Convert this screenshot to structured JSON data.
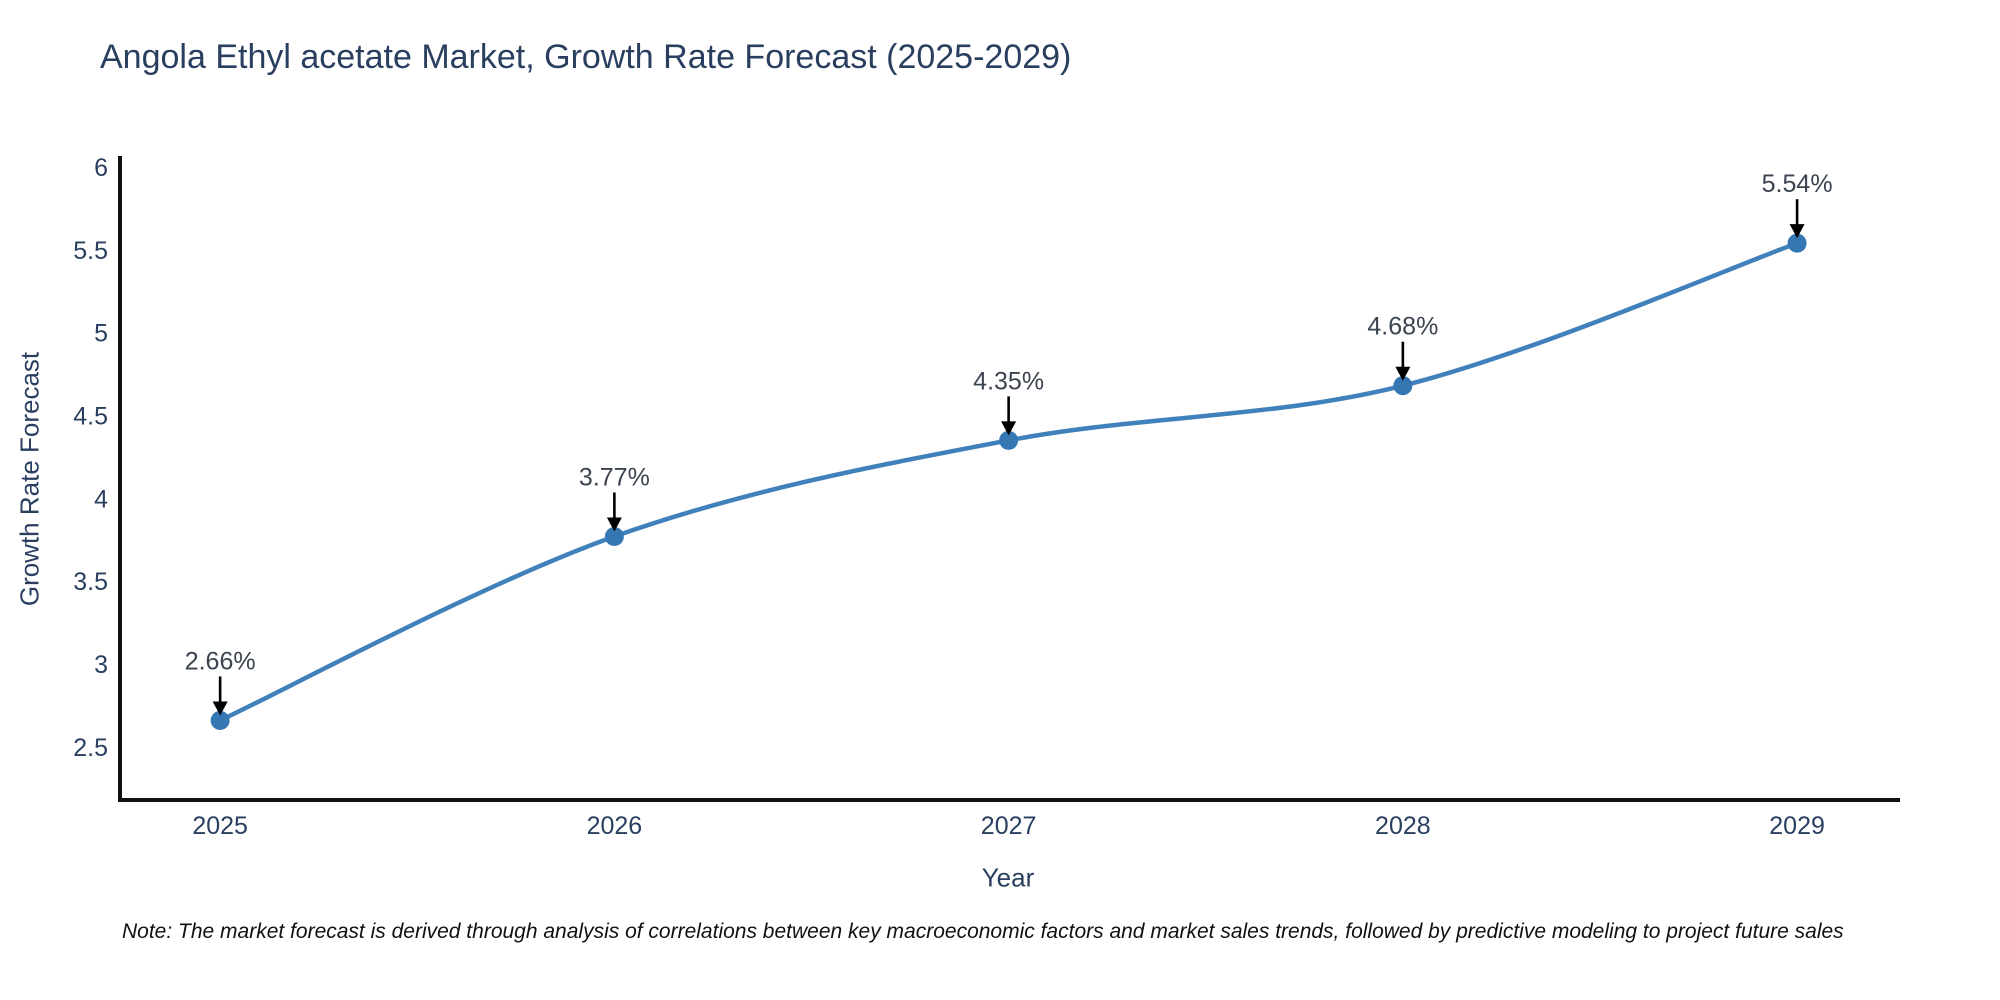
{
  "header": {
    "title": "Angola Ethyl acetate Market, Growth Rate Forecast (2025-2029)"
  },
  "note": {
    "text": "Note: The market forecast is derived through analysis of correlations between key macroeconomic factors and market sales trends, followed by predictive modeling to project future sales"
  },
  "chart_data": {
    "type": "line",
    "title": "Angola Ethyl acetate Market, Growth Rate Forecast (2025-2029)",
    "xlabel": "Year",
    "ylabel": "Growth Rate Forecast",
    "x": [
      2025,
      2026,
      2027,
      2028,
      2029
    ],
    "y": [
      2.66,
      3.77,
      4.35,
      4.68,
      5.54
    ],
    "point_labels": [
      "2.66%",
      "3.77%",
      "4.35%",
      "4.68%",
      "5.54%"
    ],
    "xticks": [
      2025,
      2026,
      2027,
      2028,
      2029
    ],
    "yticks": [
      2.5,
      3,
      3.5,
      4,
      4.5,
      5,
      5.5,
      6
    ],
    "xlim": [
      2024.746,
      2029.261
    ],
    "ylim": [
      2.18,
      6.054
    ],
    "grid": false,
    "legend": false,
    "line_shape": "spline",
    "annotation_style": "black-down-arrows",
    "colors": {
      "line": "#4081bb",
      "marker": "#3577b3",
      "axis": "#111111",
      "tick_text": "#2a3f5f",
      "annotation_text": "#3b4350",
      "arrow": "#000000",
      "background": "#ffffff"
    }
  }
}
